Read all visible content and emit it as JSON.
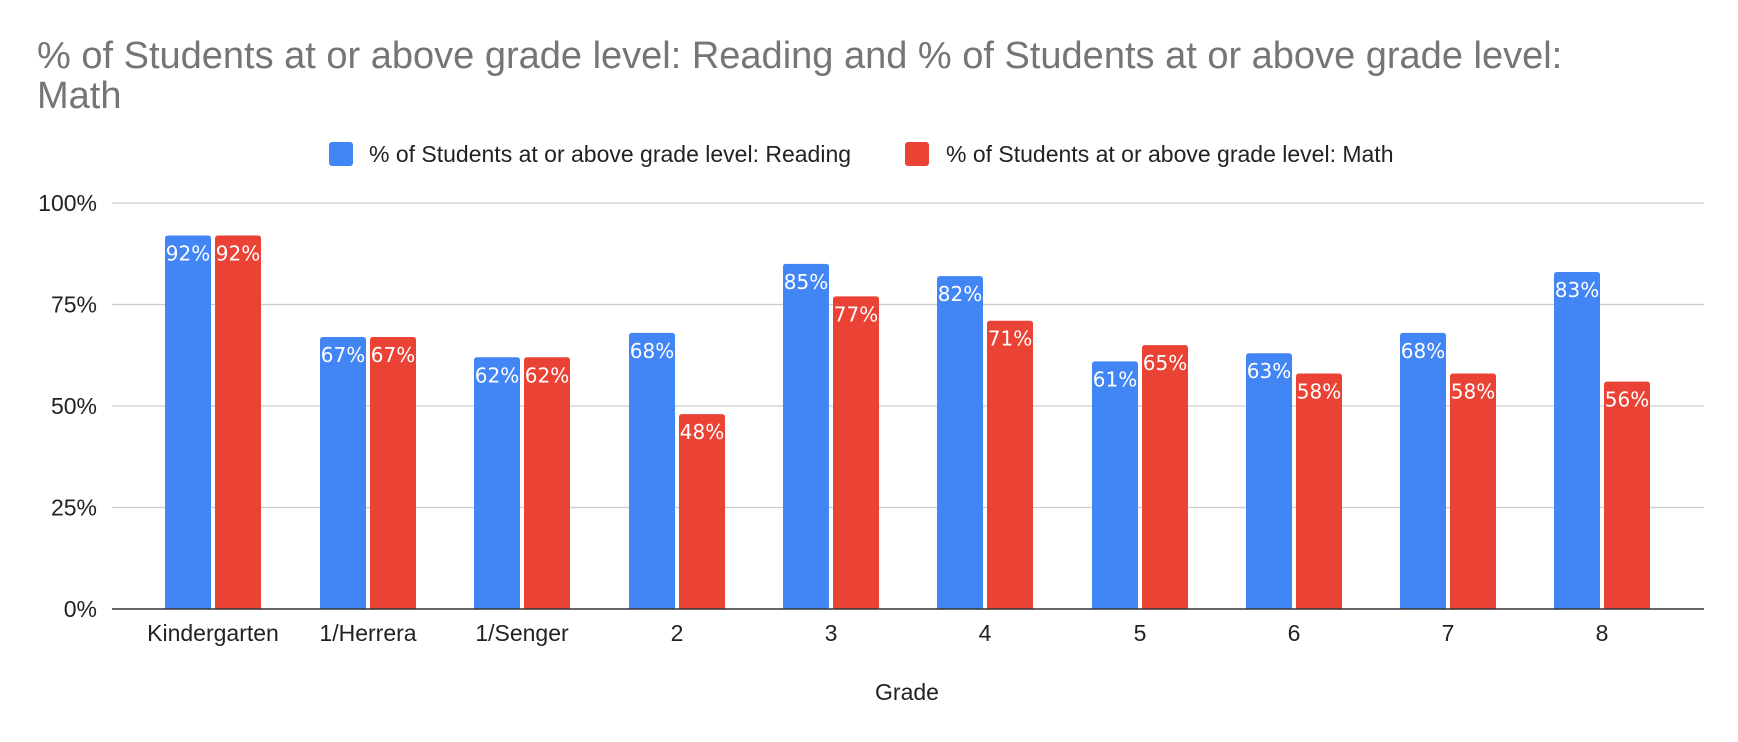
{
  "chart_data": {
    "type": "bar",
    "title": "% of Students at or above grade level: Reading and % of Students at or above grade level: Math",
    "title_lines": [
      "% of Students at or above grade level: Reading and % of Students at or above grade level:",
      "Math"
    ],
    "xlabel": "Grade",
    "ylabel": "",
    "ylim": [
      0,
      100
    ],
    "yticks": [
      "0%",
      "25%",
      "50%",
      "75%",
      "100%"
    ],
    "ytick_values": [
      0,
      25,
      50,
      75,
      100
    ],
    "grid": true,
    "legend_position": "top",
    "categories": [
      "Kindergarten",
      "1/Herrera",
      "1/Senger",
      "2",
      "3",
      "4",
      "5",
      "6",
      "7",
      "8"
    ],
    "series": [
      {
        "name": "% of Students at or above grade level: Reading",
        "color": "#4285f4",
        "values": [
          92,
          67,
          62,
          68,
          85,
          82,
          61,
          63,
          68,
          83
        ],
        "labels": [
          "92%",
          "67%",
          "62%",
          "68%",
          "85%",
          "82%",
          "61%",
          "63%",
          "68%",
          "83%"
        ]
      },
      {
        "name": "% of Students at or above grade level: Math",
        "color": "#ea4335",
        "values": [
          92,
          67,
          62,
          48,
          77,
          71,
          65,
          58,
          58,
          56
        ],
        "labels": [
          "92%",
          "67%",
          "62%",
          "48%",
          "77%",
          "71%",
          "65%",
          "58%",
          "58%",
          "56%"
        ]
      }
    ]
  }
}
